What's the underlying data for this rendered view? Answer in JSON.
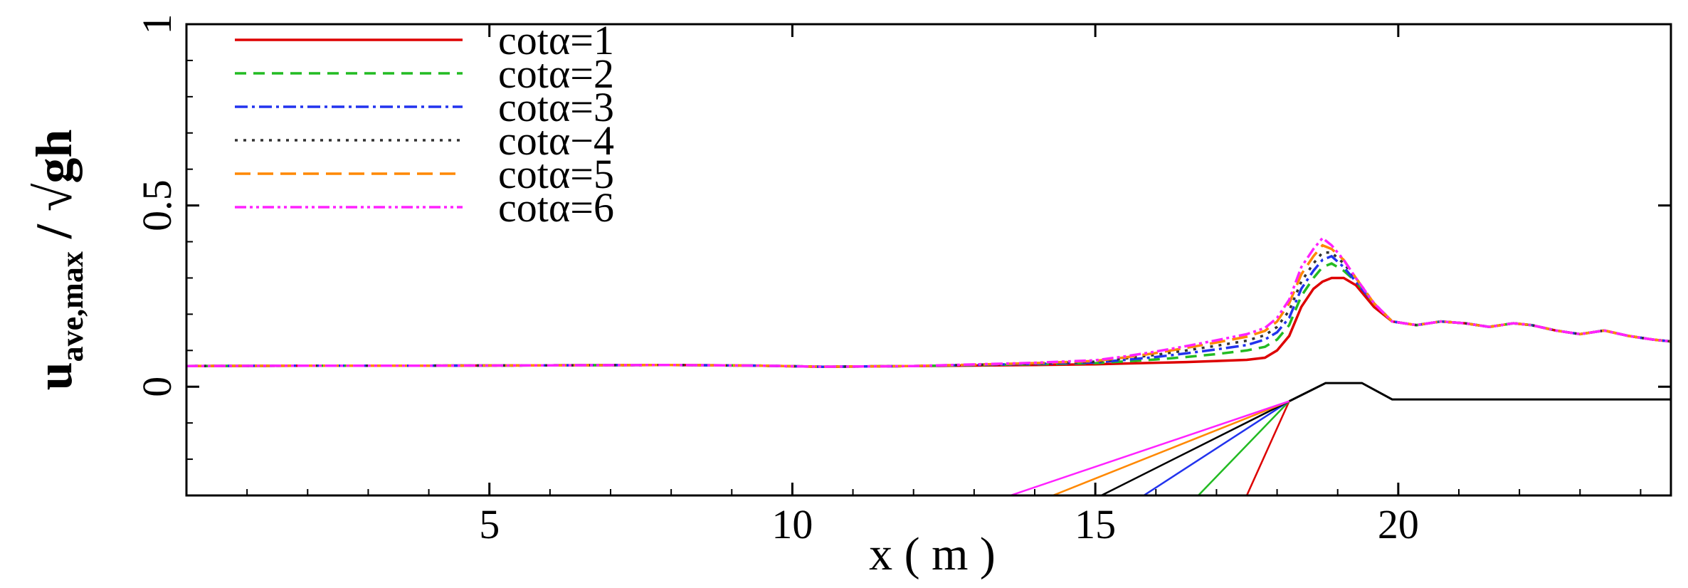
{
  "chart_data": {
    "type": "line",
    "xlabel": "x ( m )",
    "ylabel": {
      "main": "u",
      "subscript": "ave,max",
      "rest": " / √gh"
    },
    "xlim": [
      0,
      24.5
    ],
    "ylim": [
      -0.3,
      1
    ],
    "x_ticks": [
      5,
      10,
      15,
      20
    ],
    "y_ticks": [
      0,
      0.5,
      1
    ],
    "y_tick_labels": [
      "0",
      "0.5",
      "1"
    ],
    "grid": false,
    "legend_position": "top-left",
    "x": [
      0,
      2,
      4,
      6,
      8,
      9.5,
      10.5,
      12,
      14,
      15,
      15.5,
      16,
      16.5,
      17,
      17.5,
      17.8,
      18.0,
      18.2,
      18.4,
      18.6,
      18.75,
      18.9,
      19.1,
      19.3,
      19.6,
      19.9,
      20.3,
      20.7,
      21.1,
      21.5,
      21.9,
      22.2,
      22.6,
      23.0,
      23.4,
      23.8,
      24.2,
      24.5
    ],
    "series": [
      {
        "name": "cotα=1",
        "color": "#dd0000",
        "dash": "solid",
        "values": [
          0.057,
          0.058,
          0.058,
          0.059,
          0.06,
          0.058,
          0.055,
          0.057,
          0.06,
          0.062,
          0.064,
          0.066,
          0.068,
          0.071,
          0.074,
          0.08,
          0.1,
          0.14,
          0.22,
          0.27,
          0.29,
          0.3,
          0.3,
          0.28,
          0.22,
          0.18,
          0.17,
          0.18,
          0.175,
          0.165,
          0.175,
          0.17,
          0.155,
          0.145,
          0.155,
          0.14,
          0.13,
          0.125
        ]
      },
      {
        "name": "cotα=2",
        "color": "#22bb22",
        "dash": "16,10",
        "values": [
          0.057,
          0.058,
          0.058,
          0.059,
          0.06,
          0.058,
          0.055,
          0.057,
          0.062,
          0.065,
          0.07,
          0.075,
          0.082,
          0.09,
          0.1,
          0.11,
          0.13,
          0.17,
          0.25,
          0.3,
          0.33,
          0.34,
          0.32,
          0.29,
          0.23,
          0.18,
          0.17,
          0.18,
          0.175,
          0.165,
          0.175,
          0.17,
          0.155,
          0.145,
          0.155,
          0.14,
          0.13,
          0.125
        ]
      },
      {
        "name": "cotα=3",
        "color": "#2233ee",
        "dash": "18,6,4,6",
        "values": [
          0.057,
          0.058,
          0.058,
          0.059,
          0.06,
          0.058,
          0.055,
          0.057,
          0.063,
          0.067,
          0.074,
          0.082,
          0.092,
          0.103,
          0.115,
          0.13,
          0.15,
          0.19,
          0.27,
          0.32,
          0.35,
          0.36,
          0.33,
          0.29,
          0.23,
          0.18,
          0.17,
          0.18,
          0.175,
          0.165,
          0.175,
          0.17,
          0.155,
          0.145,
          0.155,
          0.14,
          0.13,
          0.125
        ]
      },
      {
        "name": "cotα−4",
        "color": "#333333",
        "dash": "4,8",
        "values": [
          0.057,
          0.058,
          0.058,
          0.059,
          0.06,
          0.058,
          0.055,
          0.057,
          0.064,
          0.069,
          0.078,
          0.088,
          0.1,
          0.113,
          0.127,
          0.142,
          0.165,
          0.21,
          0.29,
          0.34,
          0.37,
          0.37,
          0.34,
          0.3,
          0.23,
          0.18,
          0.17,
          0.18,
          0.175,
          0.165,
          0.175,
          0.17,
          0.155,
          0.145,
          0.155,
          0.14,
          0.13,
          0.125
        ]
      },
      {
        "name": "cotα=5",
        "color": "#ff8800",
        "dash": "22,10",
        "values": [
          0.057,
          0.058,
          0.058,
          0.059,
          0.06,
          0.058,
          0.055,
          0.057,
          0.065,
          0.071,
          0.081,
          0.093,
          0.107,
          0.122,
          0.138,
          0.154,
          0.18,
          0.23,
          0.31,
          0.36,
          0.39,
          0.38,
          0.35,
          0.3,
          0.23,
          0.18,
          0.17,
          0.18,
          0.175,
          0.165,
          0.175,
          0.17,
          0.155,
          0.145,
          0.155,
          0.14,
          0.13,
          0.125
        ]
      },
      {
        "name": "cotα=6",
        "color": "#ff22ff",
        "dash": "16,5,4,5,4,5",
        "values": [
          0.057,
          0.058,
          0.058,
          0.059,
          0.06,
          0.058,
          0.055,
          0.057,
          0.066,
          0.073,
          0.084,
          0.097,
          0.112,
          0.128,
          0.145,
          0.162,
          0.19,
          0.24,
          0.33,
          0.38,
          0.41,
          0.39,
          0.35,
          0.3,
          0.23,
          0.18,
          0.17,
          0.18,
          0.175,
          0.165,
          0.175,
          0.17,
          0.155,
          0.145,
          0.155,
          0.14,
          0.13,
          0.125
        ]
      }
    ],
    "bathymetry": {
      "color": "#000000",
      "x": [
        18.2,
        18.8,
        19.4,
        19.9,
        24.5
      ],
      "y": [
        -0.04,
        0.01,
        0.01,
        -0.035,
        -0.035
      ]
    },
    "slopes": [
      {
        "color": "#dd0000",
        "x": [
          17.5,
          18.2
        ],
        "y": [
          -0.3,
          -0.04
        ]
      },
      {
        "color": "#22bb22",
        "x": [
          16.7,
          18.2
        ],
        "y": [
          -0.3,
          -0.04
        ]
      },
      {
        "color": "#2233ee",
        "x": [
          15.8,
          18.2
        ],
        "y": [
          -0.3,
          -0.04
        ]
      },
      {
        "color": "#000000",
        "x": [
          15.1,
          18.2
        ],
        "y": [
          -0.3,
          -0.04
        ]
      },
      {
        "color": "#ff8800",
        "x": [
          14.3,
          18.2
        ],
        "y": [
          -0.3,
          -0.04
        ]
      },
      {
        "color": "#ff22ff",
        "x": [
          13.6,
          18.2
        ],
        "y": [
          -0.3,
          -0.04
        ]
      }
    ]
  }
}
